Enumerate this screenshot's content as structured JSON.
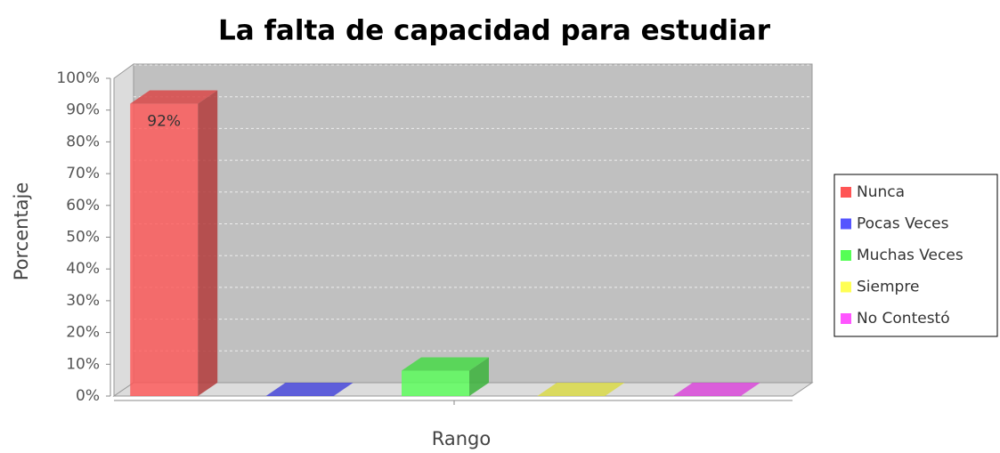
{
  "chart_data": {
    "type": "bar3d",
    "title": "La falta de capacidad para estudiar",
    "x_label": "Rango",
    "y_label": "Porcentaje",
    "categories": [
      null
    ],
    "series": [
      {
        "name": "Nunca",
        "color": "#ff5555",
        "values": [
          92
        ],
        "value_labels": [
          "92%"
        ]
      },
      {
        "name": "Pocas Veces",
        "color": "#5555ff",
        "values": [
          0
        ]
      },
      {
        "name": "Muchas Veces",
        "color": "#55ff55",
        "values": [
          8
        ]
      },
      {
        "name": "Siempre",
        "color": "#ffff55",
        "values": [
          0
        ]
      },
      {
        "name": "No Contestó",
        "color": "#ff55ff",
        "values": [
          0
        ]
      }
    ],
    "ylim": [
      0,
      100
    ],
    "yticks": [
      {
        "value": 0,
        "label": "0%"
      },
      {
        "value": 10,
        "label": "10%"
      },
      {
        "value": 20,
        "label": "20%"
      },
      {
        "value": 30,
        "label": "30%"
      },
      {
        "value": 40,
        "label": "40%"
      },
      {
        "value": 50,
        "label": "50%"
      },
      {
        "value": 60,
        "label": "60%"
      },
      {
        "value": 70,
        "label": "70%"
      },
      {
        "value": 80,
        "label": "80%"
      },
      {
        "value": 90,
        "label": "90%"
      },
      {
        "value": 100,
        "label": "100%"
      }
    ],
    "grid": true,
    "legend": "right"
  }
}
